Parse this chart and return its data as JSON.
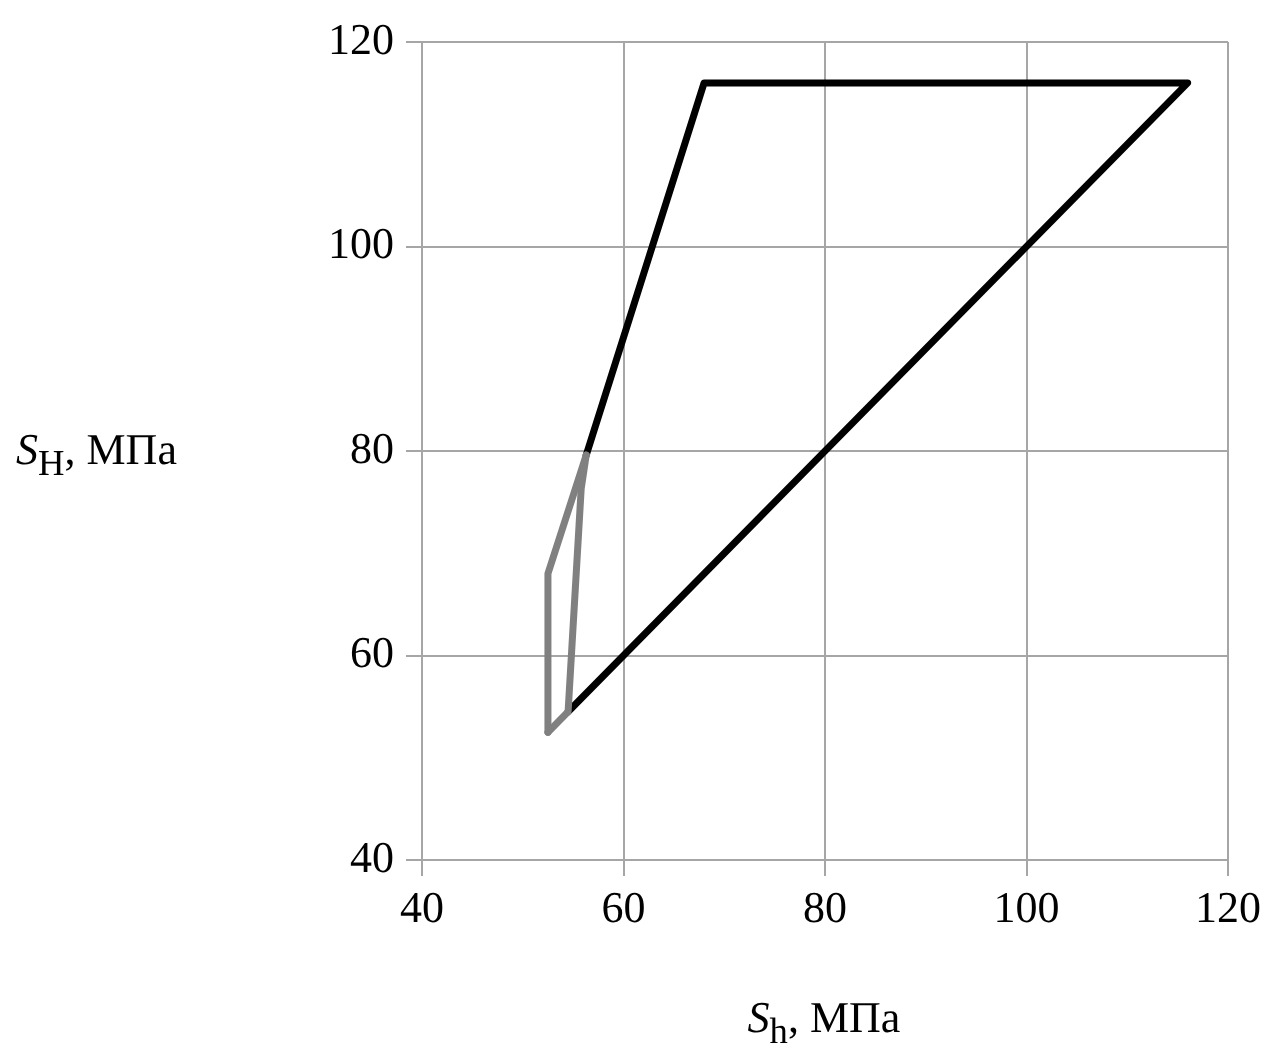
{
  "chart_data": {
    "type": "line",
    "xlabel": "S$_{h}$, МПа",
    "ylabel": "S$_{H}$, МПа",
    "xlim": [
      40,
      120
    ],
    "xticks": [
      40,
      60,
      80,
      100,
      120
    ],
    "ylim": [
      40,
      120
    ],
    "yticks": [
      40,
      60,
      80,
      100,
      120
    ],
    "grid": true,
    "marker": "none",
    "line_style": "solid",
    "series": [
      {
        "color": "#808080",
        "x": [
          52.5,
          52.5,
          56.3
        ],
        "values": [
          52.5,
          68,
          79.6
        ]
      },
      {
        "color": "#808080",
        "x": [
          52.5,
          54.5,
          55.8,
          56.3
        ],
        "values": [
          52.5,
          54.5,
          76.3,
          79.6
        ]
      },
      {
        "color": "#000000",
        "x": [
          56.3,
          68,
          116,
          54.5
        ],
        "values": [
          79.6,
          116,
          116,
          54.5
        ]
      }
    ]
  }
}
